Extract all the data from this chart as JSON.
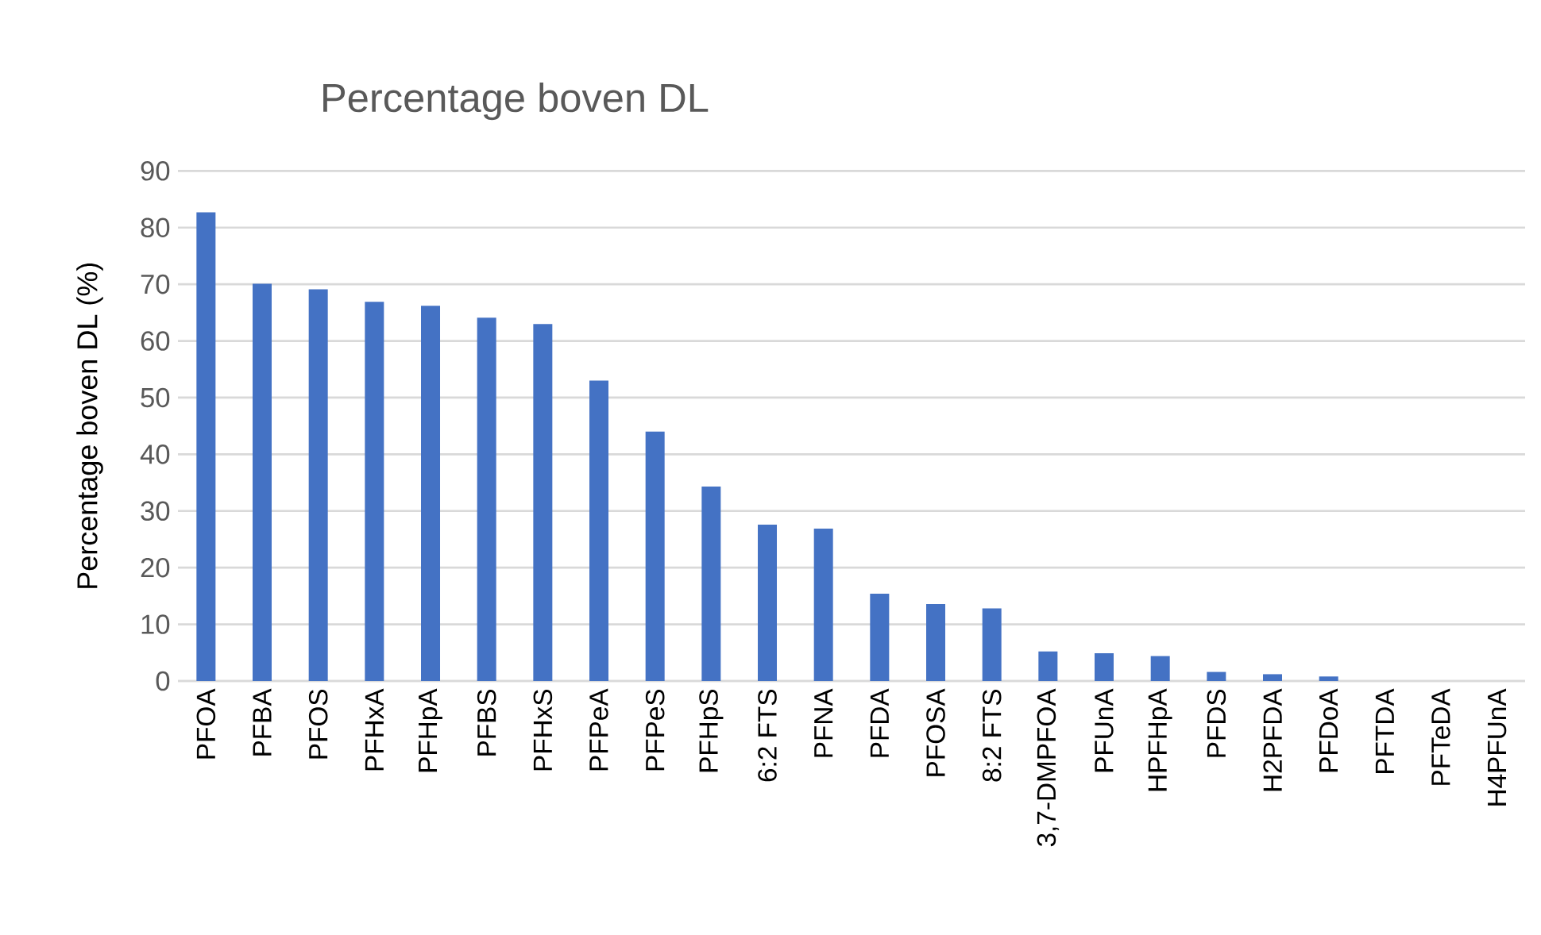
{
  "chart_data": {
    "type": "bar",
    "title": "Percentage boven DL",
    "ylabel": "Percentage boven DL (%)",
    "categories": [
      "PFOA",
      "PFBA",
      "PFOS",
      "PFHxA",
      "PFHpA",
      "PFBS",
      "PFHxS",
      "PFPeA",
      "PFPeS",
      "PFHpS",
      "6:2 FTS",
      "PFNA",
      "PFDA",
      "PFOSA",
      "8:2 FTS",
      "3,7-DMPFOA",
      "PFUnA",
      "HPFHpA",
      "PFDS",
      "H2PFDA",
      "PFDoA",
      "PFTDA",
      "PFTeDA",
      "H4PFUnA"
    ],
    "values": [
      82.7,
      70.1,
      69.1,
      66.9,
      66.2,
      64.1,
      63.0,
      53.0,
      44.0,
      34.3,
      27.6,
      26.9,
      15.4,
      13.6,
      12.8,
      5.2,
      4.9,
      4.4,
      1.6,
      1.2,
      0.8,
      0,
      0,
      0
    ],
    "color": "#4472c4",
    "ylim": [
      0,
      90
    ],
    "yticks": [
      0,
      10,
      20,
      30,
      40,
      50,
      60,
      70,
      80,
      90
    ],
    "grid": "y"
  }
}
